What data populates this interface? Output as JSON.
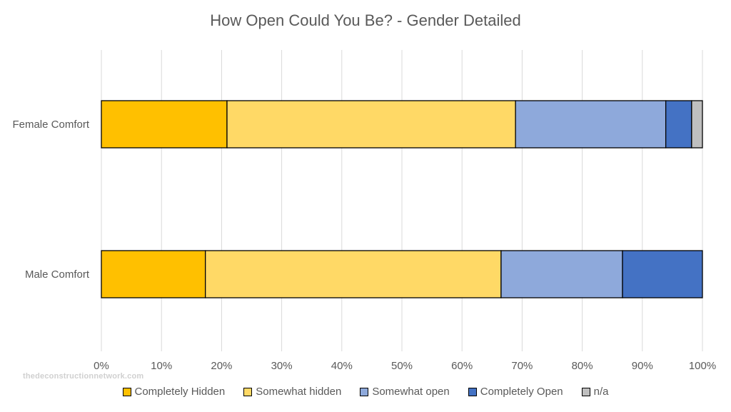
{
  "chart_data": {
    "type": "bar",
    "orientation": "horizontal",
    "stacked": "percent",
    "title": "How Open Could You Be? - Gender Detailed",
    "categories": [
      "Female Comfort",
      "Male Comfort"
    ],
    "series": [
      {
        "name": "Completely Hidden",
        "color": "#FFC000",
        "values": [
          20.9,
          17.3
        ]
      },
      {
        "name": "Somewhat hidden",
        "color": "#FFD966",
        "values": [
          48.0,
          49.2
        ]
      },
      {
        "name": "Somewhat open",
        "color": "#8EA9DB",
        "values": [
          25.0,
          20.2
        ]
      },
      {
        "name": "Completely Open",
        "color": "#4472C4",
        "values": [
          4.3,
          13.3
        ]
      },
      {
        "name": "n/a",
        "color": "#BFBFBF",
        "values": [
          1.8,
          0.0
        ]
      }
    ],
    "xticks": [
      "0%",
      "10%",
      "20%",
      "30%",
      "40%",
      "50%",
      "60%",
      "70%",
      "80%",
      "90%",
      "100%"
    ],
    "xlim": [
      0,
      100
    ],
    "grid": true,
    "legend_position": "bottom"
  },
  "watermark": "thedeconstructionnetwork.com"
}
